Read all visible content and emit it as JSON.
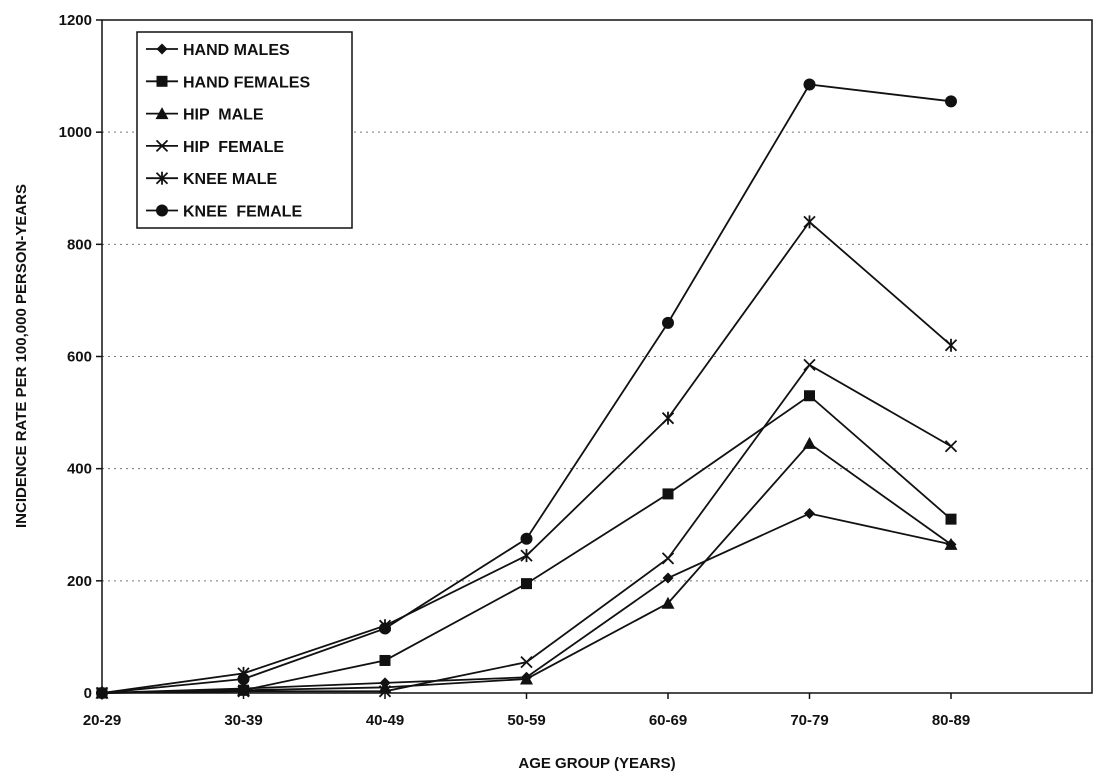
{
  "chart_data": {
    "type": "line",
    "title": "",
    "xlabel": "AGE GROUP (YEARS)",
    "ylabel": "INCIDENCE RATE PER 100,000 PERSON-YEARS",
    "categories": [
      "20-29",
      "30-39",
      "40-49",
      "50-59",
      "60-69",
      "70-79",
      "80-89"
    ],
    "ylim": [
      0,
      1200
    ],
    "yticks": [
      0,
      200,
      400,
      600,
      800,
      1000,
      1200
    ],
    "grid": "horizontal dotted",
    "legend_position": "top-left",
    "series": [
      {
        "name": "HAND MALES",
        "marker": "diamond",
        "values": [
          0,
          8,
          18,
          28,
          205,
          320,
          265
        ]
      },
      {
        "name": "HAND FEMALES",
        "marker": "square",
        "values": [
          0,
          5,
          58,
          195,
          355,
          530,
          310
        ]
      },
      {
        "name": "HIP  MALE",
        "marker": "triangle",
        "values": [
          0,
          5,
          10,
          25,
          160,
          445,
          265
        ]
      },
      {
        "name": "HIP  FEMALE",
        "marker": "x",
        "values": [
          0,
          3,
          3,
          55,
          240,
          585,
          440
        ]
      },
      {
        "name": "KNEE MALE",
        "marker": "star",
        "values": [
          0,
          35,
          120,
          245,
          490,
          840,
          620
        ]
      },
      {
        "name": "KNEE  FEMALE",
        "marker": "circle",
        "values": [
          0,
          25,
          115,
          275,
          660,
          1085,
          1055
        ]
      }
    ]
  }
}
